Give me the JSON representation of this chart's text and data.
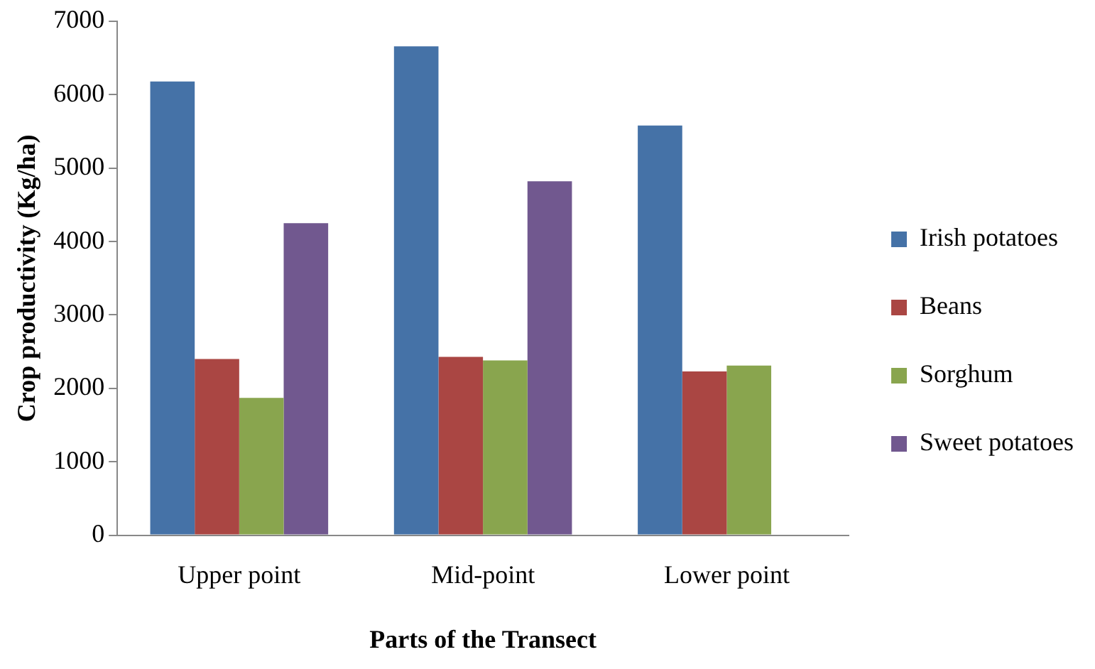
{
  "chart_data": {
    "type": "bar",
    "xlabel": "Parts of the Transect",
    "ylabel": "Crop productivity (Kg/ha)",
    "categories": [
      "Upper point",
      "Mid-point",
      "Lower point"
    ],
    "series": [
      {
        "name": "Irish potatoes",
        "color": "#4572a7",
        "values": [
          6180,
          6660,
          5580
        ]
      },
      {
        "name": "Beans",
        "color": "#aa4643",
        "values": [
          2400,
          2430,
          2230
        ]
      },
      {
        "name": "Sorghum",
        "color": "#89a54e",
        "values": [
          1870,
          2380,
          2310
        ]
      },
      {
        "name": "Sweet potatoes",
        "color": "#71588f",
        "values": [
          4250,
          4820,
          null
        ]
      }
    ],
    "ylim": [
      0,
      7000
    ],
    "yticks": [
      0,
      1000,
      2000,
      3000,
      4000,
      5000,
      6000,
      7000
    ],
    "grid": false,
    "legend": "right"
  }
}
